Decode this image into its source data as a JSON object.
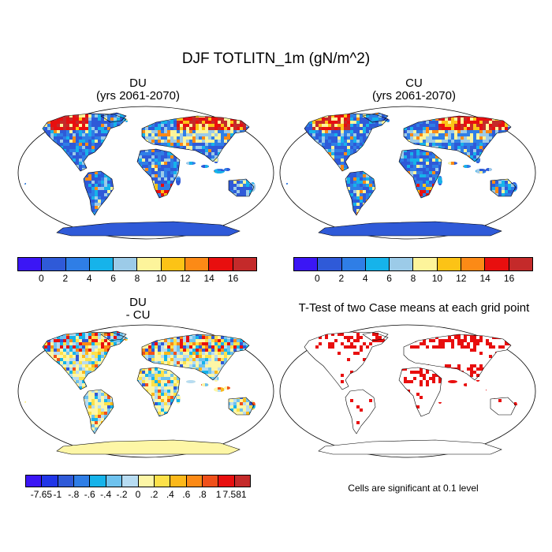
{
  "title": "DJF TOTLITN_1m (gN/m^2)",
  "panels": {
    "du": {
      "title": "DU",
      "subtitle": "(yrs 2061-2070)"
    },
    "cu": {
      "title": "CU",
      "subtitle": "(yrs 2061-2070)"
    },
    "diff": {
      "title": "DU",
      "subtitle": "- CU"
    },
    "ttest": {
      "title": "T-Test of two Case means at each grid point",
      "footnote": "Cells are significant at 0.1 level"
    }
  },
  "colorbar_main": {
    "colors": [
      "#3b16f5",
      "#2f5ad8",
      "#2f7ee6",
      "#16b3ea",
      "#9ccbe8",
      "#fdf49b",
      "#fcc316",
      "#fc8a16",
      "#e80f0f",
      "#c42a2a"
    ],
    "labels": [
      "0",
      "2",
      "4",
      "6",
      "8",
      "10",
      "12",
      "14",
      "16"
    ]
  },
  "colorbar_diff": {
    "colors": [
      "#3b16f5",
      "#2136e8",
      "#2f5ad8",
      "#2f7ee6",
      "#16b3ea",
      "#6ec2ee",
      "#b7dcf2",
      "#fdf6a6",
      "#fde14a",
      "#fcb81a",
      "#fc8a16",
      "#f0501a",
      "#e80f0f",
      "#c42a2a"
    ],
    "labels": [
      "-7.65",
      "-1",
      "-.8",
      "-.6",
      "-.4",
      "-.2",
      "0",
      ".2",
      ".4",
      ".6",
      ".8",
      "1",
      "7.581"
    ]
  },
  "colors": {
    "ocean": "#ffffff",
    "land_base_abs": "#2f5ad8",
    "land_base_diff": "#fdf6a6",
    "signif": "#e80f0f",
    "coast": "#000000"
  }
}
